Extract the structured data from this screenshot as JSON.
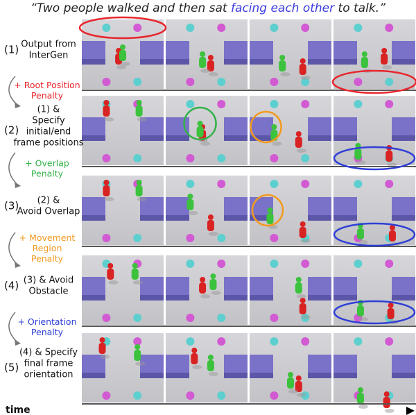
{
  "title": {
    "before": "“Two people walked and then sat ",
    "highlight": "facing each other",
    "after": " to talk.”"
  },
  "rows": [
    {
      "number": "(1)",
      "lines": [
        "Output from",
        "InterGen"
      ]
    },
    {
      "number": "(2)",
      "lines": [
        "(1) &",
        "Specify",
        "initial/end",
        "frame positions"
      ]
    },
    {
      "number": "(3)",
      "lines": [
        "(2) &",
        "Avoid Overlap"
      ]
    },
    {
      "number": "(4)",
      "lines": [
        "(3) & Avoid",
        "Obstacle"
      ]
    },
    {
      "number": "(5)",
      "lines": [
        "(4) & Specify",
        "final frame",
        "orientation"
      ]
    }
  ],
  "penalties": [
    {
      "lines": [
        "+ Root Position",
        "Penalty"
      ],
      "color": "#e8262e"
    },
    {
      "lines": [
        "+ Overlap",
        "Penalty"
      ],
      "color": "#33b24a"
    },
    {
      "lines": [
        "+ Movement",
        "Region",
        "Penalty"
      ],
      "color": "#f29a1f"
    },
    {
      "lines": [
        "+ Orientation",
        "Penalty"
      ],
      "color": "#2f3fd6"
    }
  ],
  "time_label": "time"
}
